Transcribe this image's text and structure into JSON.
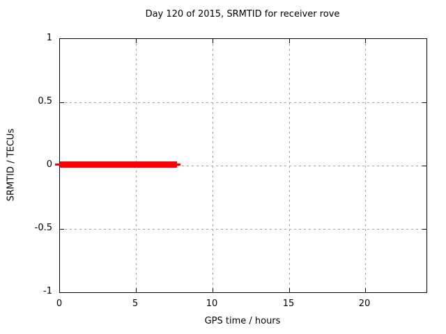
{
  "window": {
    "kind": "gnuplot-style static chart render",
    "background": "#ffffff"
  },
  "chart_data": {
    "type": "line",
    "title": "Day 120 of 2015, SRMTID for receiver rove",
    "xlabel": "GPS time / hours",
    "ylabel": "SRMTID / TECUs",
    "xlim": [
      0,
      24
    ],
    "ylim": [
      -1,
      1
    ],
    "xticks": [
      0,
      5,
      10,
      15,
      20
    ],
    "yticks": [
      1,
      0.5,
      0,
      -0.5,
      -1
    ],
    "xtick_labels": [
      "0",
      "5",
      "10",
      "15",
      "20"
    ],
    "ytick_labels": [
      "1",
      "0.5",
      "0",
      "-0.5",
      "-1"
    ],
    "grid": true,
    "grid_style": "dashed gray, at major ticks",
    "legend_position": "none",
    "series": [
      {
        "name": "SRMTID",
        "color": "#ff0000",
        "x": [
          0,
          7.7
        ],
        "y": [
          0,
          0
        ],
        "description": "thick horizontal red segment at y=0 from 0 h to about 7.7 h; no data after ~7.7 h"
      }
    ]
  },
  "colors": {
    "series_red": "#ff0000",
    "grid_gray": "#a0a0a0",
    "border_black": "#000000",
    "background": "#ffffff"
  }
}
